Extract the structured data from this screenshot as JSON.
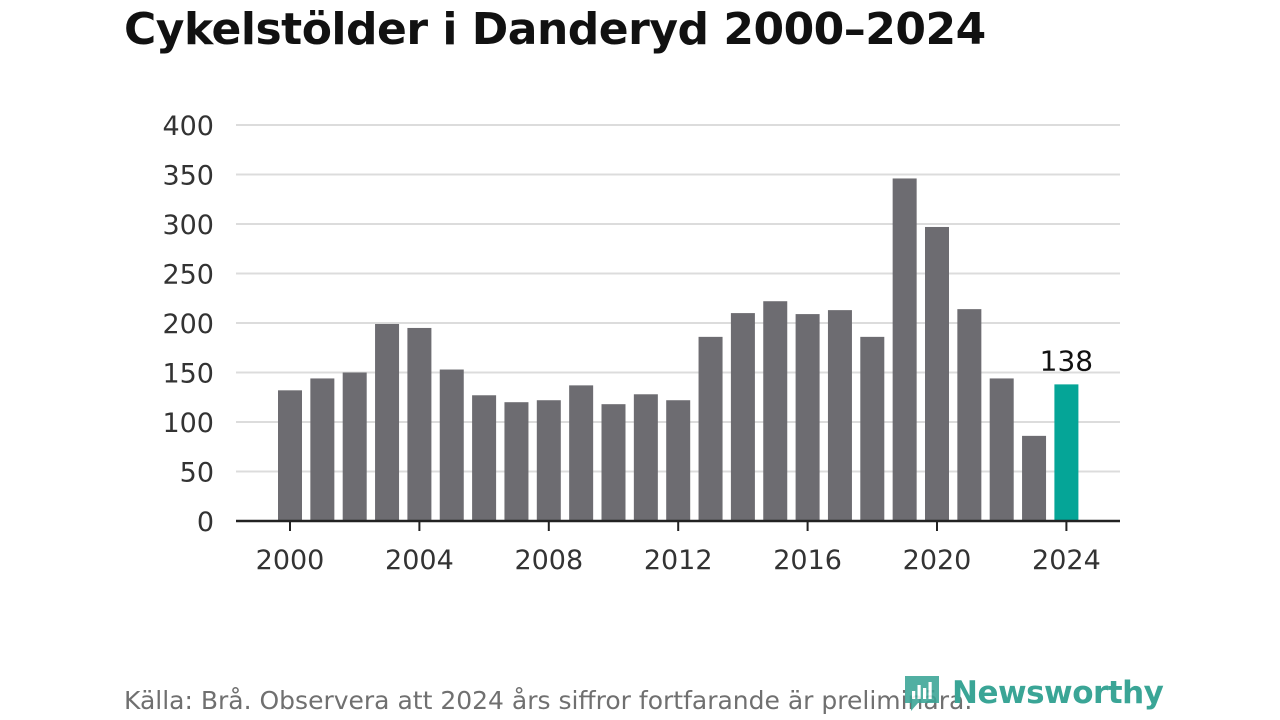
{
  "title": "Cykelstölder i Danderyd 2000–2024",
  "source": "Källa: Brå. Observera att 2024 års siffror fortfarande är preliminära.",
  "logo": {
    "text": "Newsworthy",
    "icon": "newsworthy-logo-icon",
    "color": "#3aa596"
  },
  "chart_data": {
    "type": "bar",
    "title": "Cykelstölder i Danderyd 2000–2024",
    "xlabel": "",
    "ylabel": "",
    "ylim": [
      0,
      400
    ],
    "yticks": [
      0,
      50,
      100,
      150,
      200,
      250,
      300,
      350,
      400
    ],
    "xticks": [
      2000,
      2004,
      2008,
      2012,
      2016,
      2020,
      2024
    ],
    "grid": true,
    "categories": [
      2000,
      2001,
      2002,
      2003,
      2004,
      2005,
      2006,
      2007,
      2008,
      2009,
      2010,
      2011,
      2012,
      2013,
      2014,
      2015,
      2016,
      2017,
      2018,
      2019,
      2020,
      2021,
      2022,
      2023,
      2024
    ],
    "values": [
      132,
      144,
      150,
      199,
      195,
      153,
      127,
      120,
      122,
      137,
      118,
      128,
      122,
      186,
      210,
      222,
      209,
      213,
      186,
      346,
      297,
      214,
      144,
      86,
      138
    ],
    "bar_color": "#6d6c71",
    "highlight_color": "#05a597",
    "highlight_category": 2024,
    "annotations": [
      {
        "category": 2024,
        "text": "138"
      }
    ]
  }
}
